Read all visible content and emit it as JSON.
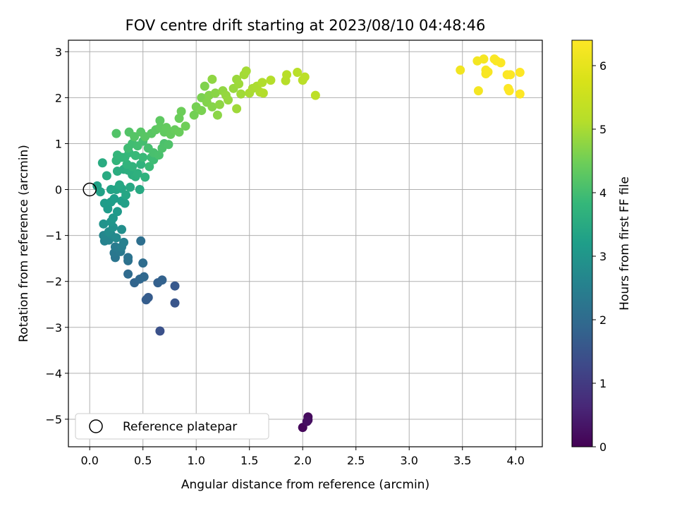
{
  "chart_data": {
    "type": "scatter",
    "title": "FOV centre drift starting at 2023/08/10 04:48:46",
    "xlabel": "Angular distance from reference (arcmin)",
    "ylabel": "Rotation from reference (arcmin)",
    "xlim": [
      -0.2,
      4.25
    ],
    "ylim": [
      -5.6,
      3.25
    ],
    "xticks": [
      0.0,
      0.5,
      1.0,
      1.5,
      2.0,
      2.5,
      3.0,
      3.5,
      4.0
    ],
    "xtick_labels": [
      "0.0",
      "0.5",
      "1.0",
      "1.5",
      "2.0",
      "2.5",
      "3.0",
      "3.5",
      "4.0"
    ],
    "yticks": [
      -5,
      -4,
      -3,
      -2,
      -1,
      0,
      1,
      2,
      3
    ],
    "ytick_labels": [
      "−5",
      "−4",
      "−3",
      "−2",
      "−1",
      "0",
      "1",
      "2",
      "3"
    ],
    "grid": true,
    "legend": {
      "position": "lower-left",
      "entries": [
        "Reference platepar"
      ]
    },
    "reference_point": {
      "x": 0.0,
      "y": 0.0
    },
    "colorbar": {
      "label": "Hours from first FF file",
      "colormap": "viridis",
      "range": [
        0,
        6.4
      ],
      "ticks": [
        0,
        1,
        2,
        3,
        4,
        5,
        6
      ],
      "tick_labels": [
        "0",
        "1",
        "2",
        "3",
        "4",
        "5",
        "6"
      ]
    },
    "points": [
      [
        2.0,
        -5.18,
        0.1
      ],
      [
        2.05,
        -4.95,
        0.15
      ],
      [
        2.05,
        -5.02,
        0.2
      ],
      [
        2.04,
        -5.05,
        0.25
      ],
      [
        0.66,
        -3.08,
        1.45
      ],
      [
        0.8,
        -2.47,
        1.55
      ],
      [
        0.8,
        -2.1,
        1.6
      ],
      [
        0.55,
        -2.35,
        1.65
      ],
      [
        0.53,
        -2.4,
        1.7
      ],
      [
        0.64,
        -2.03,
        1.75
      ],
      [
        0.68,
        -1.97,
        1.8
      ],
      [
        0.42,
        -2.03,
        1.85
      ],
      [
        0.47,
        -1.95,
        1.9
      ],
      [
        0.51,
        -1.9,
        1.95
      ],
      [
        0.36,
        -1.84,
        2.0
      ],
      [
        0.5,
        -1.6,
        2.05
      ],
      [
        0.48,
        -1.12,
        2.1
      ],
      [
        0.36,
        -1.55,
        2.15
      ],
      [
        0.36,
        -1.48,
        2.2
      ],
      [
        0.24,
        -1.48,
        2.25
      ],
      [
        0.23,
        -1.38,
        2.3
      ],
      [
        0.29,
        -1.35,
        2.35
      ],
      [
        0.24,
        -1.25,
        2.4
      ],
      [
        0.3,
        -1.25,
        2.45
      ],
      [
        0.32,
        -1.15,
        2.5
      ],
      [
        0.14,
        -1.12,
        2.55
      ],
      [
        0.18,
        -1.1,
        2.6
      ],
      [
        0.13,
        -1.0,
        2.65
      ],
      [
        0.2,
        -0.98,
        2.7
      ],
      [
        0.25,
        -1.05,
        2.75
      ],
      [
        0.18,
        -0.92,
        2.8
      ],
      [
        0.3,
        -0.87,
        2.85
      ],
      [
        0.22,
        -0.82,
        2.9
      ],
      [
        0.13,
        -0.75,
        2.95
      ],
      [
        0.2,
        -0.7,
        3.0
      ],
      [
        0.22,
        -0.62,
        3.05
      ],
      [
        0.26,
        -0.48,
        3.1
      ],
      [
        0.17,
        -0.42,
        3.12
      ],
      [
        0.14,
        -0.3,
        3.15
      ],
      [
        0.2,
        -0.27,
        3.18
      ],
      [
        0.23,
        -0.2,
        3.2
      ],
      [
        0.3,
        -0.25,
        3.22
      ],
      [
        0.33,
        -0.3,
        3.25
      ],
      [
        0.1,
        -0.05,
        3.28
      ],
      [
        0.07,
        0.08,
        3.3
      ],
      [
        0.2,
        0.0,
        3.32
      ],
      [
        0.25,
        0.0,
        3.35
      ],
      [
        0.3,
        0.02,
        3.37
      ],
      [
        0.34,
        -0.12,
        3.4
      ],
      [
        0.28,
        0.1,
        3.42
      ],
      [
        0.38,
        0.05,
        3.45
      ],
      [
        0.47,
        0.0,
        3.47
      ],
      [
        0.16,
        0.3,
        3.5
      ],
      [
        0.12,
        0.58,
        3.52
      ],
      [
        0.32,
        0.44,
        3.55
      ],
      [
        0.26,
        0.4,
        3.57
      ],
      [
        0.36,
        0.42,
        3.6
      ],
      [
        0.4,
        0.32,
        3.62
      ],
      [
        0.43,
        0.28,
        3.64
      ],
      [
        0.45,
        0.35,
        3.66
      ],
      [
        0.52,
        0.27,
        3.68
      ],
      [
        0.48,
        0.55,
        3.7
      ],
      [
        0.4,
        0.5,
        3.72
      ],
      [
        0.35,
        0.55,
        3.74
      ],
      [
        0.25,
        0.63,
        3.76
      ],
      [
        0.3,
        0.7,
        3.78
      ],
      [
        0.26,
        0.75,
        3.8
      ],
      [
        0.33,
        0.7,
        3.82
      ],
      [
        0.37,
        0.8,
        3.84
      ],
      [
        0.43,
        0.74,
        3.86
      ],
      [
        0.5,
        0.7,
        3.88
      ],
      [
        0.56,
        0.5,
        3.9
      ],
      [
        0.58,
        0.7,
        3.92
      ],
      [
        0.6,
        0.65,
        3.94
      ],
      [
        0.36,
        0.9,
        3.96
      ],
      [
        0.4,
        1.0,
        3.98
      ],
      [
        0.45,
        0.95,
        4.0
      ],
      [
        0.5,
        1.05,
        4.02
      ],
      [
        0.55,
        0.9,
        4.04
      ],
      [
        0.6,
        0.8,
        4.06
      ],
      [
        0.65,
        0.75,
        4.08
      ],
      [
        0.7,
        1.0,
        4.1
      ],
      [
        0.68,
        0.9,
        4.12
      ],
      [
        0.74,
        0.98,
        4.14
      ],
      [
        0.25,
        1.22,
        4.16
      ],
      [
        0.37,
        1.25,
        4.18
      ],
      [
        0.42,
        1.15,
        4.2
      ],
      [
        0.48,
        1.25,
        4.22
      ],
      [
        0.52,
        1.15,
        4.24
      ],
      [
        0.58,
        1.22,
        4.26
      ],
      [
        0.62,
        1.3,
        4.28
      ],
      [
        0.66,
        1.5,
        4.3
      ],
      [
        0.66,
        1.35,
        4.32
      ],
      [
        0.7,
        1.25,
        4.34
      ],
      [
        0.72,
        1.35,
        4.36
      ],
      [
        0.76,
        1.2,
        4.38
      ],
      [
        0.8,
        1.3,
        4.4
      ],
      [
        0.84,
        1.25,
        4.42
      ],
      [
        0.84,
        1.55,
        4.44
      ],
      [
        0.86,
        1.7,
        4.46
      ],
      [
        0.9,
        1.38,
        4.48
      ],
      [
        0.98,
        1.62,
        4.52
      ],
      [
        1.0,
        1.8,
        4.55
      ],
      [
        1.05,
        1.72,
        4.58
      ],
      [
        1.05,
        2.0,
        4.6
      ],
      [
        1.08,
        2.25,
        4.63
      ],
      [
        1.1,
        1.9,
        4.66
      ],
      [
        1.12,
        2.05,
        4.68
      ],
      [
        1.15,
        1.8,
        4.7
      ],
      [
        1.18,
        2.1,
        4.72
      ],
      [
        1.2,
        1.62,
        4.74
      ],
      [
        1.22,
        1.85,
        4.76
      ],
      [
        1.15,
        2.4,
        4.78
      ],
      [
        1.25,
        2.15,
        4.8
      ],
      [
        1.28,
        2.05,
        4.82
      ],
      [
        1.3,
        1.95,
        4.84
      ],
      [
        1.35,
        2.2,
        4.86
      ],
      [
        1.38,
        2.4,
        4.88
      ],
      [
        1.4,
        2.3,
        4.9
      ],
      [
        1.38,
        1.76,
        4.92
      ],
      [
        1.42,
        2.08,
        4.94
      ],
      [
        1.45,
        2.5,
        4.96
      ],
      [
        1.47,
        2.58,
        4.98
      ],
      [
        1.5,
        2.1,
        5.0
      ],
      [
        1.53,
        2.2,
        5.02
      ],
      [
        1.57,
        2.25,
        5.04
      ],
      [
        1.6,
        2.12,
        5.06
      ],
      [
        1.62,
        2.33,
        5.08
      ],
      [
        1.63,
        2.1,
        5.1
      ],
      [
        1.7,
        2.38,
        5.12
      ],
      [
        1.84,
        2.37,
        5.15
      ],
      [
        1.85,
        2.5,
        5.18
      ],
      [
        1.95,
        2.55,
        5.2
      ],
      [
        2.0,
        2.38,
        5.22
      ],
      [
        2.02,
        2.45,
        5.24
      ],
      [
        2.12,
        2.05,
        5.26
      ],
      [
        3.48,
        2.6,
        6.2
      ],
      [
        3.64,
        2.8,
        6.22
      ],
      [
        3.65,
        2.15,
        6.24
      ],
      [
        3.7,
        2.84,
        6.26
      ],
      [
        3.72,
        2.6,
        6.28
      ],
      [
        3.72,
        2.52,
        6.3
      ],
      [
        3.74,
        2.56,
        6.32
      ],
      [
        3.8,
        2.84,
        6.34
      ],
      [
        3.82,
        2.8,
        6.35
      ],
      [
        3.86,
        2.76,
        6.36
      ],
      [
        3.92,
        2.5,
        6.37
      ],
      [
        3.93,
        2.2,
        6.38
      ],
      [
        3.95,
        2.5,
        6.39
      ],
      [
        3.94,
        2.15,
        6.4
      ],
      [
        4.04,
        2.55,
        6.4
      ],
      [
        4.04,
        2.08,
        6.4
      ]
    ]
  }
}
